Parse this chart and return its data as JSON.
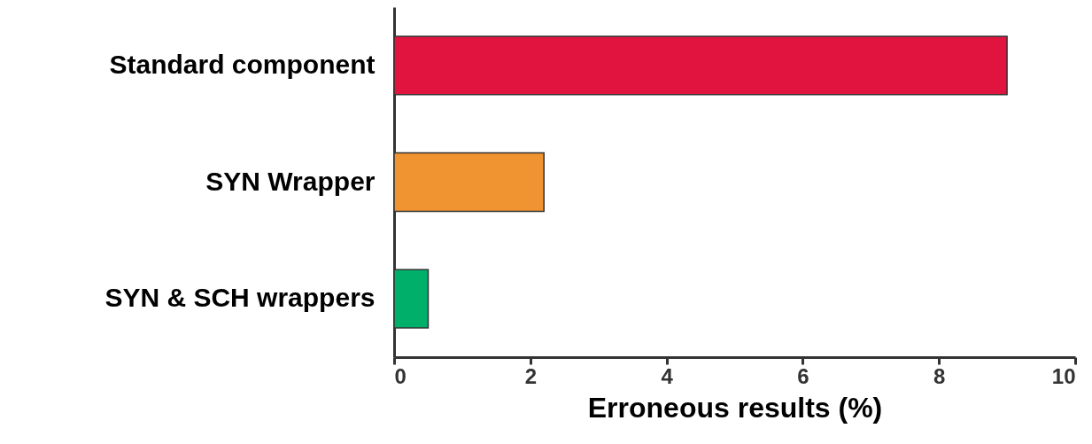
{
  "chart_data": {
    "type": "bar",
    "orientation": "horizontal",
    "categories": [
      "Standard component",
      "SYN Wrapper",
      "SYN & SCH wrappers"
    ],
    "values": [
      9.0,
      2.2,
      0.5
    ],
    "colors": [
      "#e0143f",
      "#f09431",
      "#00b06a"
    ],
    "xlabel": "Erroneous results (%)",
    "xlim": [
      0,
      10
    ],
    "xticks": [
      0,
      2,
      4,
      6,
      8,
      10
    ],
    "grid": false
  }
}
